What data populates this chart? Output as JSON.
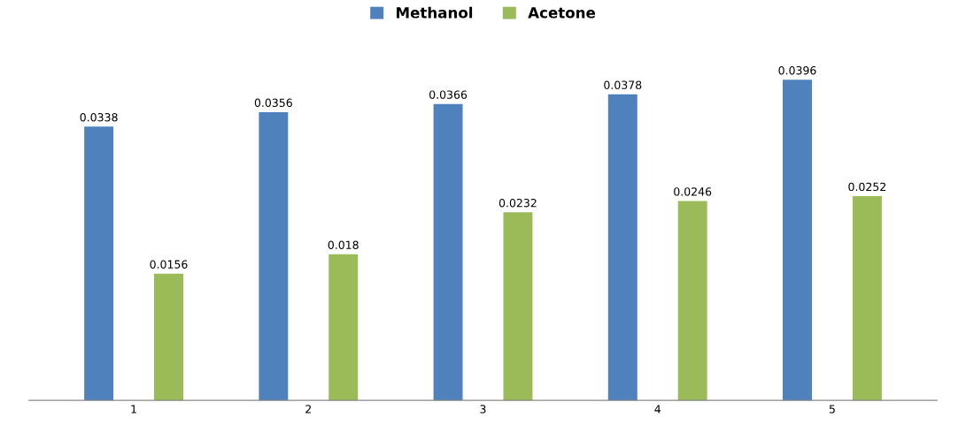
{
  "chart_data": {
    "type": "bar",
    "categories": [
      "1",
      "2",
      "3",
      "4",
      "5"
    ],
    "series": [
      {
        "name": "Methanol",
        "color": "#4f81bd",
        "values": [
          0.0338,
          0.0356,
          0.0366,
          0.0378,
          0.0396
        ]
      },
      {
        "name": "Acetone",
        "color": "#9bbb59",
        "values": [
          0.0156,
          0.018,
          0.0232,
          0.0246,
          0.0252
        ]
      }
    ],
    "data_labels": true,
    "legend": "top",
    "grid": false
  }
}
